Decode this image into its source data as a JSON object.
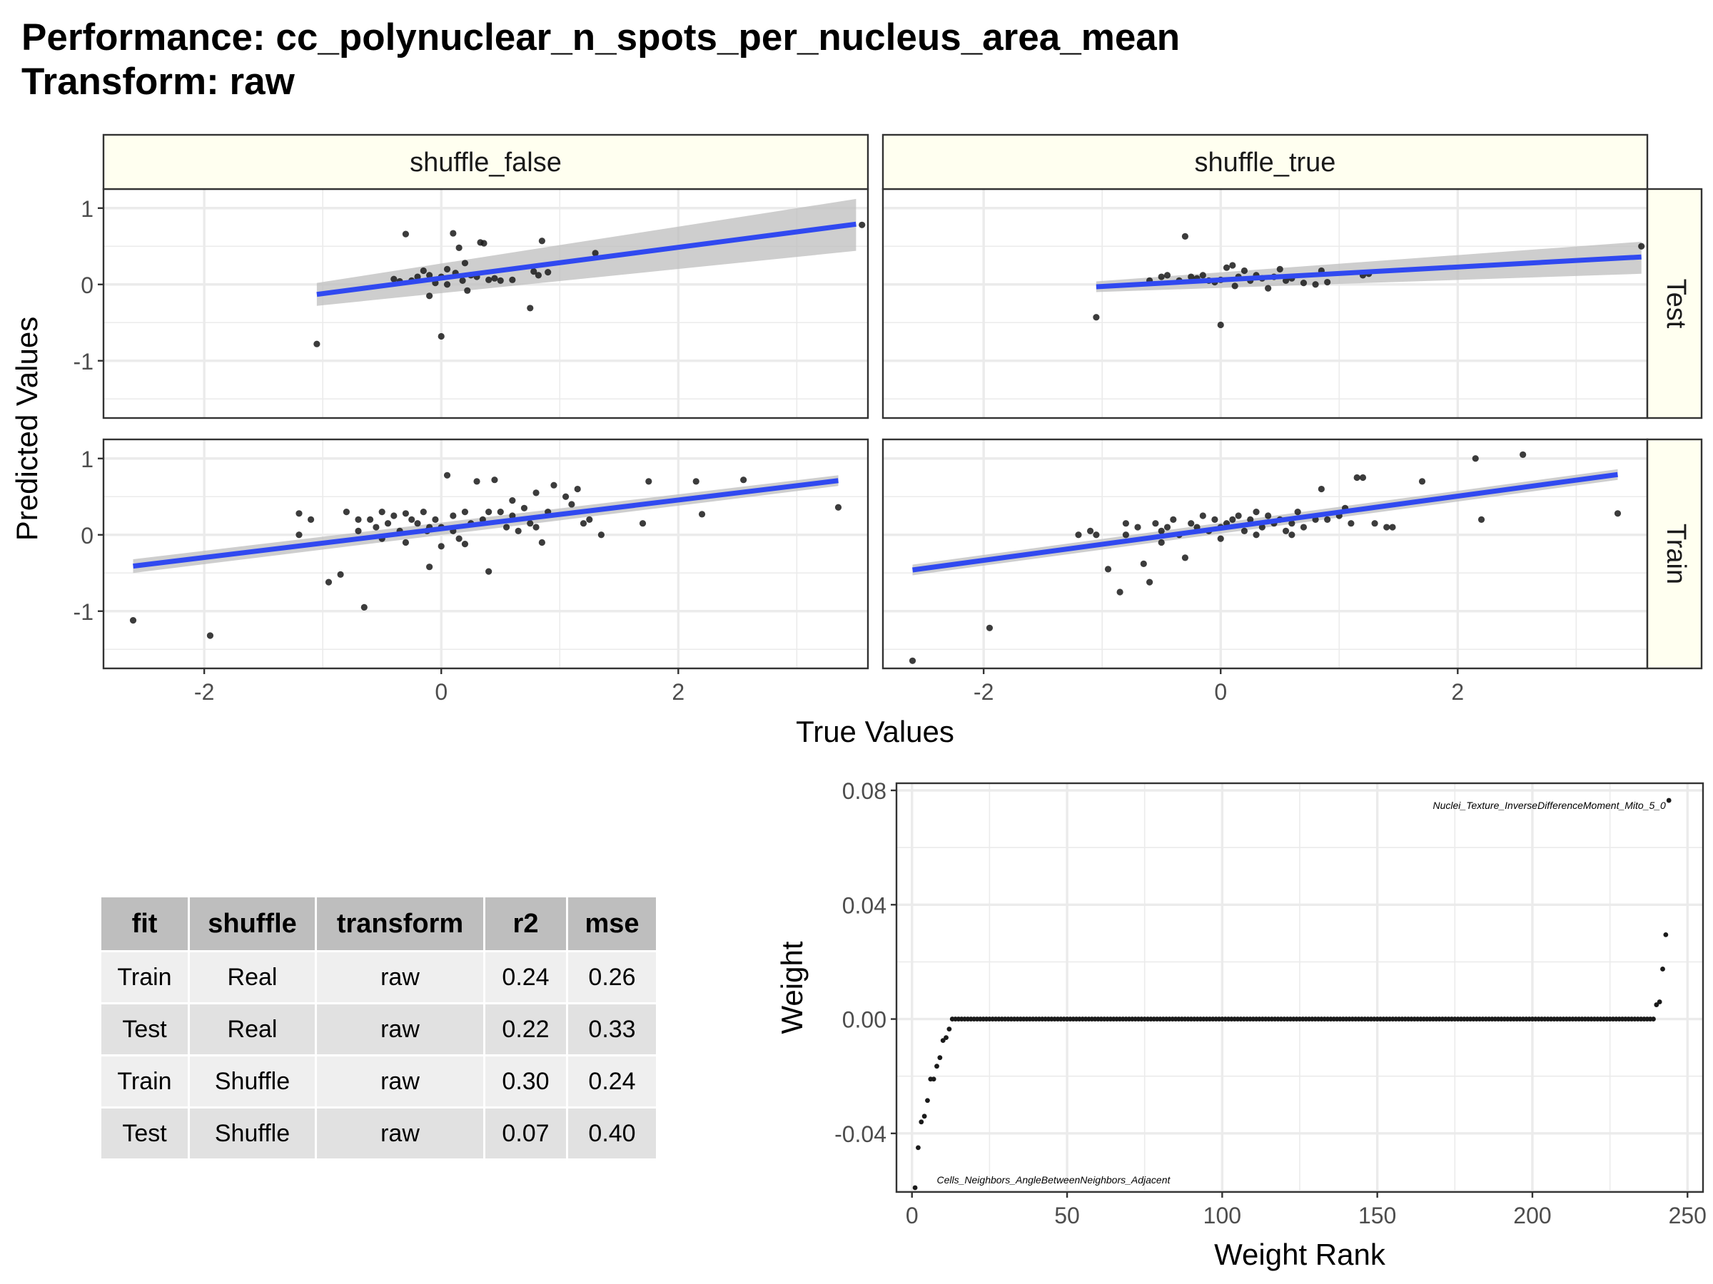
{
  "title": {
    "line1": "Performance: cc_polynuclear_n_spots_per_nucleus_area_mean",
    "line2": "Transform: raw"
  },
  "colors": {
    "fit_line": "#3049f0",
    "ribbon": "#bdbdbd",
    "strip_fill": "#fffff0",
    "panel_grid": "#ebebeb",
    "point": "#1a1a1a"
  },
  "chart_data": [
    {
      "type": "scatter",
      "facets": {
        "columns": [
          "shuffle_false",
          "shuffle_true"
        ],
        "rows": [
          "Test",
          "Train"
        ]
      },
      "xlabel": "True Values",
      "ylabel": "Predicted Values",
      "xlim": [
        -2.85,
        3.6
      ],
      "ylim": [
        -1.75,
        1.25
      ],
      "x_ticks": [
        -2,
        0,
        2
      ],
      "x_tick_labels": [
        "-2",
        "0",
        "2"
      ],
      "y_ticks": [
        -1,
        0,
        1
      ],
      "y_tick_labels": [
        "-1",
        "0",
        "1"
      ],
      "grid": true,
      "legend": "none",
      "panels": [
        {
          "col": "shuffle_false",
          "row": "Test",
          "fit": {
            "x": [
              -1.05,
              3.5
            ],
            "y": [
              -0.13,
              0.79
            ],
            "ribbon_lower_end": [
              -0.28,
              0.44
            ],
            "ribbon_upper_end": [
              0.02,
              1.12
            ]
          },
          "points": [
            [
              -1.05,
              -0.78
            ],
            [
              -0.3,
              0.66
            ],
            [
              -0.25,
              0.05
            ],
            [
              -0.15,
              0.18
            ],
            [
              -0.1,
              0.12
            ],
            [
              -0.05,
              0.02
            ],
            [
              0.0,
              0.1
            ],
            [
              0.05,
              0.2
            ],
            [
              0.1,
              0.67
            ],
            [
              0.12,
              0.15
            ],
            [
              0.15,
              0.48
            ],
            [
              0.18,
              0.05
            ],
            [
              0.22,
              -0.08
            ],
            [
              0.25,
              0.12
            ],
            [
              0.3,
              0.1
            ],
            [
              0.33,
              0.55
            ],
            [
              0.36,
              0.54
            ],
            [
              0.4,
              0.06
            ],
            [
              0.45,
              0.08
            ],
            [
              0.5,
              0.05
            ],
            [
              0.75,
              -0.31
            ],
            [
              0.78,
              0.17
            ],
            [
              0.82,
              0.12
            ],
            [
              0.85,
              0.57
            ],
            [
              0.9,
              0.16
            ],
            [
              1.3,
              0.41
            ],
            [
              0.0,
              -0.68
            ],
            [
              -0.1,
              -0.15
            ],
            [
              0.2,
              0.28
            ],
            [
              -0.35,
              0.04
            ],
            [
              -0.2,
              0.1
            ],
            [
              0.05,
              0.0
            ],
            [
              3.55,
              0.78
            ],
            [
              -0.4,
              0.07
            ],
            [
              0.6,
              0.06
            ]
          ]
        },
        {
          "col": "shuffle_true",
          "row": "Test",
          "fit": {
            "x": [
              -1.05,
              3.55
            ],
            "y": [
              -0.03,
              0.36
            ],
            "ribbon_lower_end": [
              -0.1,
              0.14
            ],
            "ribbon_upper_end": [
              0.04,
              0.56
            ]
          },
          "points": [
            [
              -1.05,
              -0.43
            ],
            [
              -0.3,
              0.63
            ],
            [
              -0.5,
              0.1
            ],
            [
              -0.45,
              0.12
            ],
            [
              -0.35,
              0.05
            ],
            [
              -0.25,
              0.1
            ],
            [
              -0.2,
              0.08
            ],
            [
              -0.15,
              0.12
            ],
            [
              -0.1,
              0.05
            ],
            [
              -0.05,
              0.03
            ],
            [
              0.0,
              0.06
            ],
            [
              0.05,
              0.22
            ],
            [
              0.1,
              0.25
            ],
            [
              0.12,
              -0.02
            ],
            [
              0.15,
              0.1
            ],
            [
              0.2,
              0.18
            ],
            [
              0.25,
              0.05
            ],
            [
              0.3,
              0.12
            ],
            [
              0.35,
              0.08
            ],
            [
              0.4,
              -0.05
            ],
            [
              0.45,
              0.1
            ],
            [
              0.5,
              0.2
            ],
            [
              0.55,
              0.05
            ],
            [
              0.6,
              0.08
            ],
            [
              0.8,
              0.0
            ],
            [
              0.85,
              0.18
            ],
            [
              0.9,
              0.03
            ],
            [
              1.2,
              0.12
            ],
            [
              1.25,
              0.14
            ],
            [
              0.0,
              -0.53
            ],
            [
              3.55,
              0.5
            ],
            [
              -0.6,
              0.05
            ],
            [
              0.7,
              0.02
            ]
          ]
        },
        {
          "col": "shuffle_false",
          "row": "Train",
          "fit": {
            "x": [
              -2.6,
              3.35
            ],
            "y": [
              -0.41,
              0.71
            ],
            "ribbon_lower_end": [
              -0.5,
              0.64
            ],
            "ribbon_upper_end": [
              -0.32,
              0.78
            ]
          },
          "points": [
            [
              -2.6,
              -1.12
            ],
            [
              -1.95,
              -1.32
            ],
            [
              -1.2,
              0.28
            ],
            [
              -1.2,
              0.0
            ],
            [
              -1.1,
              0.2
            ],
            [
              -0.95,
              -0.62
            ],
            [
              -0.85,
              -0.52
            ],
            [
              -0.8,
              0.3
            ],
            [
              -0.7,
              0.05
            ],
            [
              -0.65,
              -0.95
            ],
            [
              -0.6,
              0.2
            ],
            [
              -0.55,
              0.1
            ],
            [
              -0.5,
              -0.05
            ],
            [
              -0.45,
              0.15
            ],
            [
              -0.4,
              0.25
            ],
            [
              -0.35,
              0.05
            ],
            [
              -0.3,
              -0.1
            ],
            [
              -0.25,
              0.2
            ],
            [
              -0.2,
              0.15
            ],
            [
              -0.15,
              0.3
            ],
            [
              -0.12,
              0.05
            ],
            [
              -0.1,
              -0.42
            ],
            [
              -0.05,
              0.2
            ],
            [
              0.0,
              0.1
            ],
            [
              0.05,
              0.78
            ],
            [
              0.1,
              0.25
            ],
            [
              0.15,
              -0.05
            ],
            [
              0.2,
              0.3
            ],
            [
              0.25,
              0.15
            ],
            [
              0.3,
              0.7
            ],
            [
              0.35,
              0.2
            ],
            [
              0.4,
              -0.48
            ],
            [
              0.45,
              0.72
            ],
            [
              0.5,
              0.3
            ],
            [
              0.55,
              0.1
            ],
            [
              0.6,
              0.25
            ],
            [
              0.65,
              0.05
            ],
            [
              0.7,
              0.35
            ],
            [
              0.75,
              0.15
            ],
            [
              0.8,
              0.1
            ],
            [
              0.85,
              -0.1
            ],
            [
              0.9,
              0.3
            ],
            [
              0.95,
              0.65
            ],
            [
              1.05,
              0.5
            ],
            [
              1.1,
              0.4
            ],
            [
              1.15,
              0.6
            ],
            [
              1.2,
              0.15
            ],
            [
              1.25,
              0.2
            ],
            [
              1.35,
              0.0
            ],
            [
              1.7,
              0.15
            ],
            [
              1.75,
              0.7
            ],
            [
              2.15,
              0.7
            ],
            [
              2.2,
              0.27
            ],
            [
              2.55,
              0.72
            ],
            [
              3.35,
              0.36
            ],
            [
              -0.3,
              0.28
            ],
            [
              0.0,
              -0.15
            ],
            [
              0.2,
              -0.12
            ],
            [
              -0.5,
              0.3
            ],
            [
              0.6,
              0.45
            ],
            [
              0.8,
              0.55
            ],
            [
              -0.1,
              0.1
            ],
            [
              0.4,
              0.3
            ],
            [
              0.1,
              0.05
            ],
            [
              -0.7,
              0.2
            ]
          ]
        },
        {
          "col": "shuffle_true",
          "row": "Train",
          "fit": {
            "x": [
              -2.6,
              3.35
            ],
            "y": [
              -0.46,
              0.79
            ],
            "ribbon_lower_end": [
              -0.53,
              0.72
            ],
            "ribbon_upper_end": [
              -0.39,
              0.86
            ]
          },
          "points": [
            [
              -2.6,
              -1.65
            ],
            [
              -1.95,
              -1.22
            ],
            [
              -1.2,
              0.0
            ],
            [
              -1.1,
              0.05
            ],
            [
              -1.05,
              0.0
            ],
            [
              -0.95,
              -0.45
            ],
            [
              -0.85,
              -0.75
            ],
            [
              -0.8,
              0.0
            ],
            [
              -0.7,
              0.1
            ],
            [
              -0.65,
              -0.38
            ],
            [
              -0.6,
              -0.62
            ],
            [
              -0.55,
              0.15
            ],
            [
              -0.5,
              0.05
            ],
            [
              -0.45,
              0.1
            ],
            [
              -0.4,
              0.2
            ],
            [
              -0.35,
              0.0
            ],
            [
              -0.3,
              -0.3
            ],
            [
              -0.25,
              0.15
            ],
            [
              -0.2,
              0.1
            ],
            [
              -0.15,
              0.25
            ],
            [
              -0.1,
              0.05
            ],
            [
              -0.05,
              0.2
            ],
            [
              0.0,
              0.1
            ],
            [
              0.05,
              0.15
            ],
            [
              0.1,
              0.2
            ],
            [
              0.15,
              0.25
            ],
            [
              0.2,
              0.05
            ],
            [
              0.25,
              0.2
            ],
            [
              0.3,
              0.3
            ],
            [
              0.35,
              0.1
            ],
            [
              0.4,
              0.25
            ],
            [
              0.45,
              0.15
            ],
            [
              0.5,
              0.2
            ],
            [
              0.55,
              0.05
            ],
            [
              0.6,
              0.15
            ],
            [
              0.65,
              0.3
            ],
            [
              0.7,
              0.1
            ],
            [
              0.8,
              0.2
            ],
            [
              0.85,
              0.6
            ],
            [
              0.9,
              0.2
            ],
            [
              1.0,
              0.25
            ],
            [
              1.05,
              0.35
            ],
            [
              1.1,
              0.15
            ],
            [
              1.15,
              0.75
            ],
            [
              1.2,
              0.75
            ],
            [
              1.3,
              0.15
            ],
            [
              1.4,
              0.1
            ],
            [
              1.45,
              0.1
            ],
            [
              1.7,
              0.7
            ],
            [
              2.15,
              1.0
            ],
            [
              2.2,
              0.2
            ],
            [
              2.55,
              1.05
            ],
            [
              3.35,
              0.28
            ],
            [
              -0.5,
              -0.1
            ],
            [
              0.0,
              -0.05
            ],
            [
              0.3,
              0.0
            ],
            [
              -0.8,
              0.15
            ],
            [
              0.6,
              0.0
            ]
          ]
        }
      ]
    },
    {
      "type": "scatter",
      "xlabel": "Weight Rank",
      "ylabel": "Weight",
      "xlim": [
        -5,
        255
      ],
      "ylim": [
        -0.0605,
        0.0825
      ],
      "x_ticks": [
        0,
        50,
        100,
        150,
        200,
        250
      ],
      "x_tick_labels": [
        "0",
        "50",
        "100",
        "150",
        "200",
        "250"
      ],
      "y_ticks": [
        -0.04,
        0.0,
        0.04,
        0.08
      ],
      "y_tick_labels": [
        "-0.04",
        "0.00",
        "0.04",
        "0.08"
      ],
      "grid": true,
      "legend": "none",
      "negative_ranks": [
        1,
        2,
        3,
        4,
        5,
        6,
        7,
        8,
        9,
        10,
        11,
        12
      ],
      "negative_values": [
        -0.059,
        -0.045,
        -0.036,
        -0.034,
        -0.0285,
        -0.021,
        -0.021,
        -0.0165,
        -0.0135,
        -0.0075,
        -0.0065,
        -0.0035
      ],
      "zero_rank_start": 13,
      "zero_rank_end": 239,
      "positive_ranks": [
        240,
        241,
        242,
        243,
        244
      ],
      "positive_values": [
        0.005,
        0.006,
        0.0175,
        0.0295,
        0.0765
      ],
      "annotations": [
        {
          "text": "Nuclei_Texture_InverseDifferenceMoment_Mito_5_0",
          "x": 243,
          "y": 0.0735,
          "anchor": "end"
        },
        {
          "text": "Cells_Neighbors_AngleBetweenNeighbors_Adjacent",
          "x": 8,
          "y": -0.0575,
          "anchor": "start"
        }
      ]
    }
  ],
  "table": {
    "headers": [
      "fit",
      "shuffle",
      "transform",
      "r2",
      "mse"
    ],
    "rows": [
      [
        "Train",
        "Real",
        "raw",
        "0.24",
        "0.26"
      ],
      [
        "Test",
        "Real",
        "raw",
        "0.22",
        "0.33"
      ],
      [
        "Train",
        "Shuffle",
        "raw",
        "0.30",
        "0.24"
      ],
      [
        "Test",
        "Shuffle",
        "raw",
        "0.07",
        "0.40"
      ]
    ]
  }
}
